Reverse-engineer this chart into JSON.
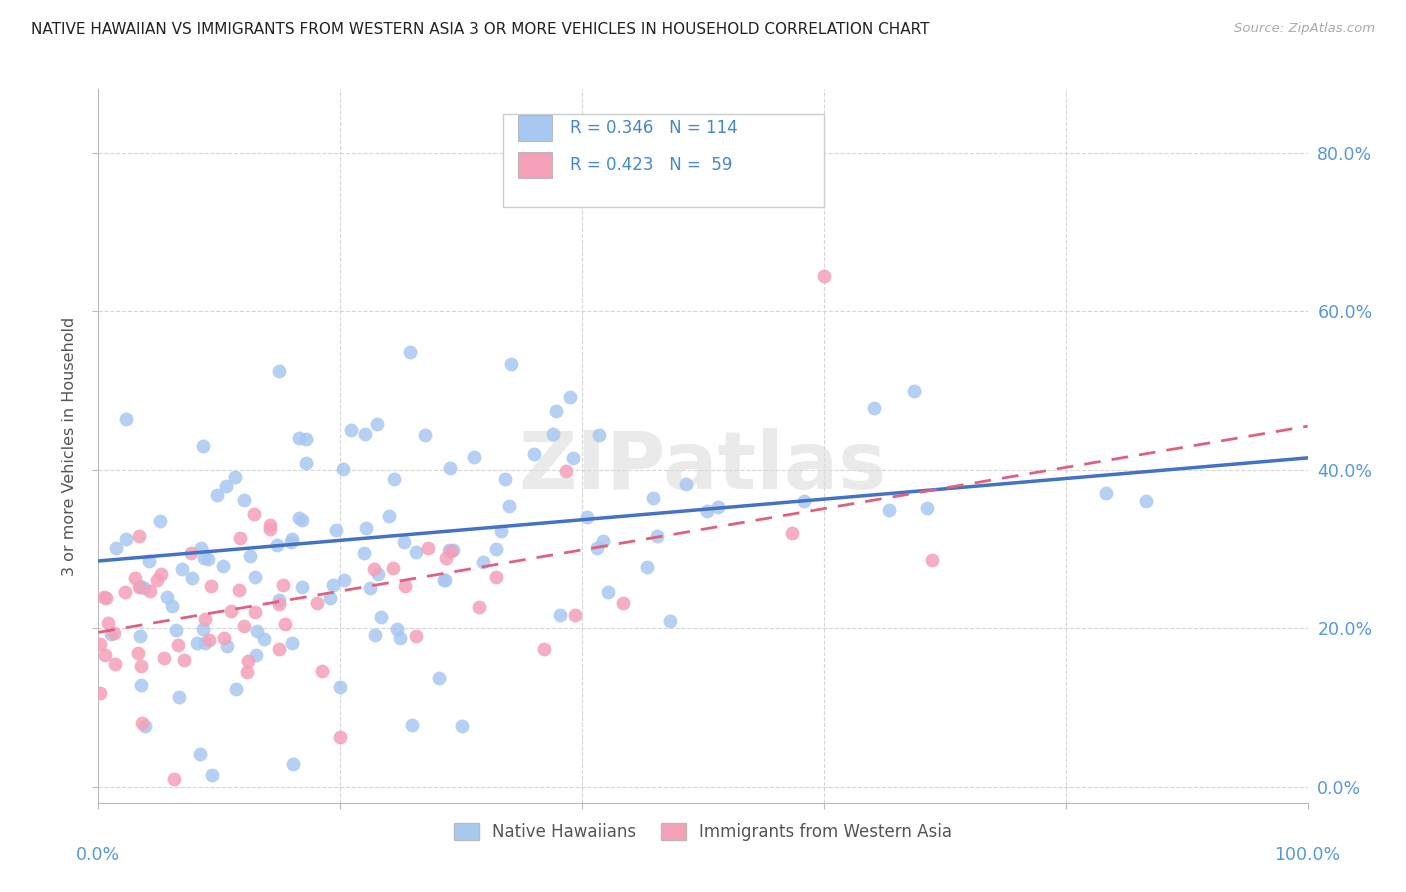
{
  "title": "NATIVE HAWAIIAN VS IMMIGRANTS FROM WESTERN ASIA 3 OR MORE VEHICLES IN HOUSEHOLD CORRELATION CHART",
  "source_text": "Source: ZipAtlas.com",
  "ylabel": "3 or more Vehicles in Household",
  "xmin": 0.0,
  "xmax": 1.0,
  "ymin": -0.02,
  "ymax": 0.88,
  "ytick_labels": [
    "0.0%",
    "20.0%",
    "40.0%",
    "60.0%",
    "80.0%"
  ],
  "ytick_vals": [
    0.0,
    0.2,
    0.4,
    0.6,
    0.8
  ],
  "xtick_vals": [
    0.0,
    0.2,
    0.4,
    0.6,
    0.8,
    1.0
  ],
  "blue_color": "#A8C8F0",
  "pink_color": "#F4A0B8",
  "blue_line_color": "#4472C4",
  "pink_line_color": "#E06080",
  "blue_R": 0.346,
  "blue_N": 114,
  "pink_R": 0.423,
  "pink_N": 59,
  "watermark": "ZIPatlas",
  "legend_label_blue": "Native Hawaiians",
  "legend_label_pink": "Immigrants from Western Asia",
  "title_color": "#222222",
  "axis_label_color": "#555555",
  "tick_label_color_right": "#5599DD",
  "grid_color": "#cccccc",
  "background_color": "#ffffff",
  "blue_line_start": 0.285,
  "blue_line_end": 0.415,
  "pink_line_start": 0.195,
  "pink_line_end": 0.455,
  "seed_blue": 42,
  "seed_pink": 7
}
